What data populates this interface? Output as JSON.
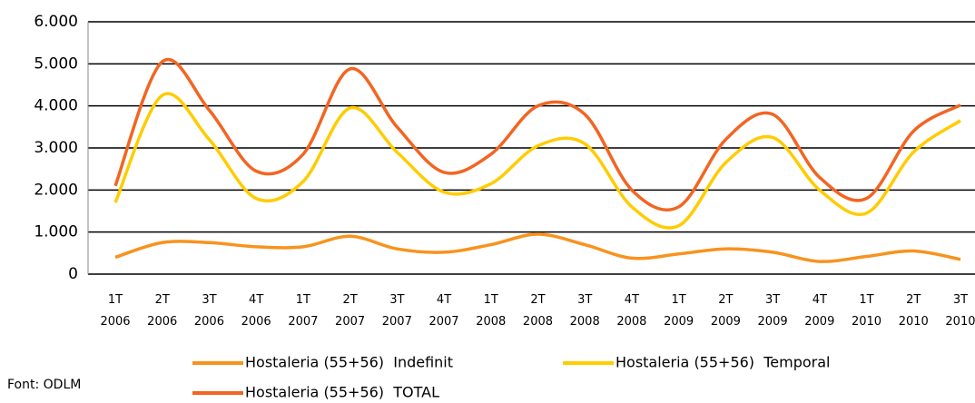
{
  "chart_data": {
    "type": "line",
    "categories": [
      [
        "1T",
        "2006"
      ],
      [
        "2T",
        "2006"
      ],
      [
        "3T",
        "2006"
      ],
      [
        "4T",
        "2006"
      ],
      [
        "1T",
        "2007"
      ],
      [
        "2T",
        "2007"
      ],
      [
        "3T",
        "2007"
      ],
      [
        "4T",
        "2007"
      ],
      [
        "1T",
        "2008"
      ],
      [
        "2T",
        "2008"
      ],
      [
        "3T",
        "2008"
      ],
      [
        "4T",
        "2008"
      ],
      [
        "1T",
        "2009"
      ],
      [
        "2T",
        "2009"
      ],
      [
        "3T",
        "2009"
      ],
      [
        "4T",
        "2009"
      ],
      [
        "1T",
        "2010"
      ],
      [
        "2T",
        "2010"
      ],
      [
        "3T",
        "2010"
      ]
    ],
    "series": [
      {
        "name": "Hostaleria (55+56)  Indefinit",
        "color": "#f7931e",
        "values": [
          400,
          750,
          750,
          650,
          650,
          900,
          600,
          520,
          700,
          950,
          700,
          380,
          480,
          600,
          520,
          300,
          420,
          550,
          350
        ]
      },
      {
        "name": "Hostaleria (55+56)  Temporal",
        "color": "#ffcc00",
        "values": [
          1700,
          4250,
          3200,
          1800,
          2200,
          3950,
          2900,
          1950,
          2150,
          3050,
          3100,
          1600,
          1150,
          2650,
          3250,
          2000,
          1450,
          2900,
          3650
        ]
      },
      {
        "name": "Hostaleria (55+56)  TOTAL",
        "color": "#f26522",
        "values": [
          2100,
          5050,
          3900,
          2450,
          2850,
          4880,
          3500,
          2420,
          2850,
          4000,
          3800,
          2000,
          1600,
          3200,
          3800,
          2300,
          1800,
          3400,
          4020
        ]
      }
    ],
    "ylim": [
      0,
      6000
    ],
    "yticks": [
      0,
      {
        "value": 1000,
        "label": "1.000"
      },
      {
        "value": 2000,
        "label": "2.000"
      },
      {
        "value": 3000,
        "label": "3.000"
      },
      {
        "value": 4000,
        "label": "4.000"
      },
      {
        "value": 5000,
        "label": "5.000"
      },
      {
        "value": 6000,
        "label": "6.000"
      }
    ],
    "grid": true,
    "legend": "bottom",
    "source": "Font: ODLM"
  }
}
